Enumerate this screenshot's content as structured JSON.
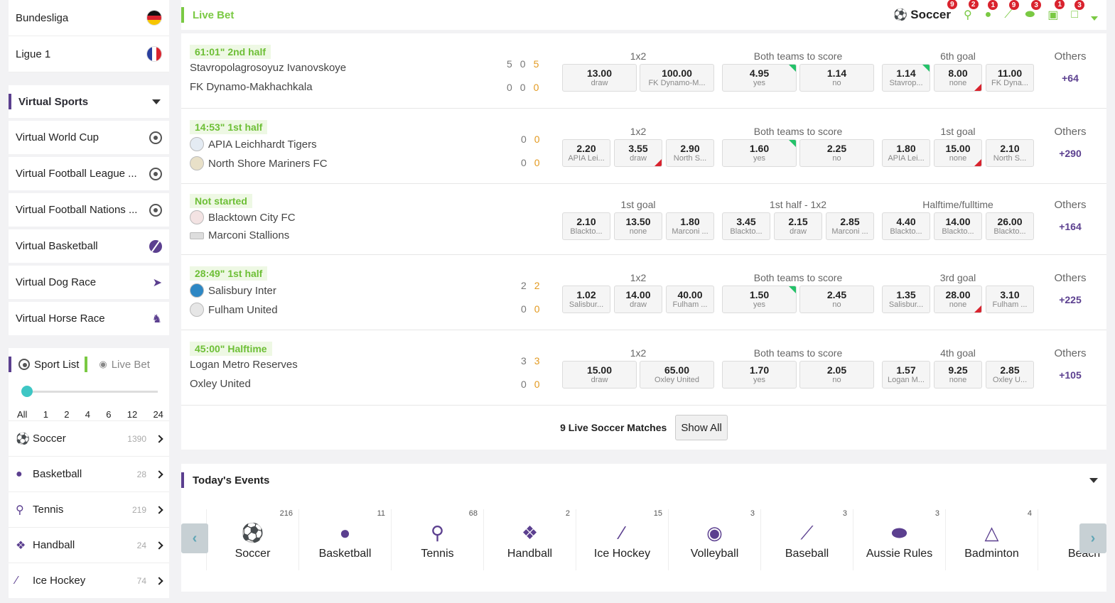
{
  "sidebar": {
    "leagues": [
      {
        "label": "Bundesliga",
        "flag": "germany-flag"
      },
      {
        "label": "Ligue 1",
        "flag": "france-flag"
      }
    ],
    "virtual_title": "Virtual Sports",
    "virtual_items": [
      {
        "label": "Virtual World Cup",
        "icon": "soccer-ball-icon"
      },
      {
        "label": "Virtual Football League ...",
        "icon": "soccer-ball-icon"
      },
      {
        "label": "Virtual Football Nations ...",
        "icon": "soccer-ball-icon"
      },
      {
        "label": "Virtual Basketball",
        "icon": "basketball-icon"
      },
      {
        "label": "Virtual Dog Race",
        "icon": "dog-icon"
      },
      {
        "label": "Virtual Horse Race",
        "icon": "horse-icon"
      }
    ],
    "tabs": {
      "sport_list": "Sport List",
      "live_bet": "Live Bet"
    },
    "slider": {
      "labels": [
        "All",
        "1",
        "2",
        "4",
        "6",
        "12",
        "24"
      ],
      "selected": "All"
    },
    "sports": [
      {
        "label": "Soccer",
        "count": "1390"
      },
      {
        "label": "Basketball",
        "count": "28"
      },
      {
        "label": "Tennis",
        "count": "219"
      },
      {
        "label": "Handball",
        "count": "24"
      },
      {
        "label": "Ice Hockey",
        "count": "74"
      }
    ]
  },
  "live": {
    "title": "Live Bet",
    "active_sport": "Soccer",
    "sport_badges": [
      "9",
      "2",
      "1",
      "9",
      "3",
      "1",
      "3"
    ],
    "matches": [
      {
        "status": "61:01\" 2nd half",
        "home": "Stavropolagrosoyuz Ivanovskoye",
        "away": "FK Dynamo-Makhachkala",
        "home_scores": [
          "5",
          "0",
          "5"
        ],
        "away_scores": [
          "0",
          "0",
          "0"
        ],
        "markets": [
          "1x2",
          "Both teams to score",
          "6th goal"
        ],
        "odds": [
          {
            "v": "13.00",
            "l": "draw"
          },
          {
            "v": "100.00",
            "l": "FK Dynamo-M..."
          },
          {
            "v": "4.95",
            "l": "yes"
          },
          {
            "v": "1.14",
            "l": "no"
          },
          {
            "v": "1.14",
            "l": "Stavrop..."
          },
          {
            "v": "8.00",
            "l": "none"
          },
          {
            "v": "11.00",
            "l": "FK Dyna..."
          }
        ],
        "others_label": "Others",
        "others": "+64"
      },
      {
        "status": "14:53\" 1st half",
        "home": "APIA Leichhardt Tigers",
        "away": "North Shore Mariners FC",
        "home_scores": [
          "0",
          "0"
        ],
        "away_scores": [
          "0",
          "0"
        ],
        "markets": [
          "1x2",
          "Both teams to score",
          "1st goal"
        ],
        "odds": [
          {
            "v": "2.20",
            "l": "APIA Lei..."
          },
          {
            "v": "3.55",
            "l": "draw"
          },
          {
            "v": "2.90",
            "l": "North S..."
          },
          {
            "v": "1.60",
            "l": "yes"
          },
          {
            "v": "2.25",
            "l": "no"
          },
          {
            "v": "1.80",
            "l": "APIA Lei..."
          },
          {
            "v": "15.00",
            "l": "none"
          },
          {
            "v": "2.10",
            "l": "North S..."
          }
        ],
        "others_label": "Others",
        "others": "+290"
      },
      {
        "status": "Not started",
        "home": "Blacktown City FC",
        "away": "Marconi Stallions",
        "markets": [
          "1st goal",
          "1st half - 1x2",
          "Halftime/fulltime"
        ],
        "odds": [
          {
            "v": "2.10",
            "l": "Blackto..."
          },
          {
            "v": "13.50",
            "l": "none"
          },
          {
            "v": "1.80",
            "l": "Marconi ..."
          },
          {
            "v": "3.45",
            "l": "Blackto..."
          },
          {
            "v": "2.15",
            "l": "draw"
          },
          {
            "v": "2.85",
            "l": "Marconi ..."
          },
          {
            "v": "4.40",
            "l": "Blackto..."
          },
          {
            "v": "14.00",
            "l": "Blackto..."
          },
          {
            "v": "26.00",
            "l": "Blackto..."
          }
        ],
        "others_label": "Others",
        "others": "+164"
      },
      {
        "status": "28:49\" 1st half",
        "home": "Salisbury Inter",
        "away": "Fulham United",
        "home_scores": [
          "2",
          "2"
        ],
        "away_scores": [
          "0",
          "0"
        ],
        "markets": [
          "1x2",
          "Both teams to score",
          "3rd goal"
        ],
        "odds": [
          {
            "v": "1.02",
            "l": "Salisbur..."
          },
          {
            "v": "14.00",
            "l": "draw"
          },
          {
            "v": "40.00",
            "l": "Fulham ..."
          },
          {
            "v": "1.50",
            "l": "yes"
          },
          {
            "v": "2.45",
            "l": "no"
          },
          {
            "v": "1.35",
            "l": "Salisbur..."
          },
          {
            "v": "28.00",
            "l": "none"
          },
          {
            "v": "3.10",
            "l": "Fulham ..."
          }
        ],
        "others_label": "Others",
        "others": "+225"
      },
      {
        "status": "45:00\" Halftime",
        "home": "Logan Metro Reserves",
        "away": "Oxley United",
        "home_scores": [
          "3",
          "3"
        ],
        "away_scores": [
          "0",
          "0"
        ],
        "markets": [
          "1x2",
          "Both teams to score",
          "4th goal"
        ],
        "odds": [
          {
            "v": "15.00",
            "l": "draw"
          },
          {
            "v": "65.00",
            "l": "Oxley United"
          },
          {
            "v": "1.70",
            "l": "yes"
          },
          {
            "v": "2.05",
            "l": "no"
          },
          {
            "v": "1.57",
            "l": "Logan M..."
          },
          {
            "v": "9.25",
            "l": "none"
          },
          {
            "v": "2.85",
            "l": "Oxley U..."
          }
        ],
        "others_label": "Others",
        "others": "+105"
      }
    ],
    "footer_count": "9 Live Soccer Matches",
    "show_all": "Show All"
  },
  "today": {
    "title": "Today's Events",
    "events": [
      {
        "label": "Soccer",
        "count": "216",
        "icon": "soccer-ball-icon"
      },
      {
        "label": "Basketball",
        "count": "11",
        "icon": "basketball-icon"
      },
      {
        "label": "Tennis",
        "count": "68",
        "icon": "tennis-racket-icon"
      },
      {
        "label": "Handball",
        "count": "2",
        "icon": "handball-icon"
      },
      {
        "label": "Ice Hockey",
        "count": "15",
        "icon": "hockey-stick-icon"
      },
      {
        "label": "Volleyball",
        "count": "3",
        "icon": "volleyball-icon"
      },
      {
        "label": "Baseball",
        "count": "3",
        "icon": "baseball-bat-icon"
      },
      {
        "label": "Aussie Rules",
        "count": "3",
        "icon": "aussie-rules-ball-icon"
      },
      {
        "label": "Badminton",
        "count": "4",
        "icon": "shuttlecock-icon"
      },
      {
        "label": "Beach",
        "count": "",
        "icon": "beach-icon"
      }
    ]
  },
  "colors": {
    "accent_green": "#7ac943",
    "accent_purple": "#5b3f8f",
    "badge_red": "#d9232e",
    "score_orange": "#e39a21"
  }
}
